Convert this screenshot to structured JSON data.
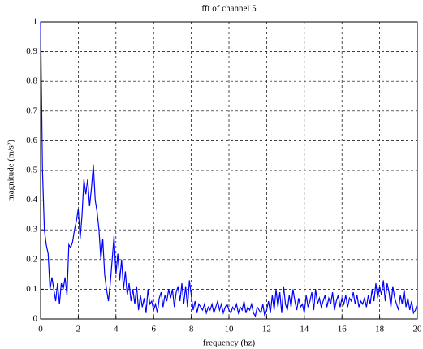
{
  "chart_data": {
    "type": "line",
    "title": "fft of channel 5",
    "xlabel": "frequency (hz)",
    "ylabel": "magnitude (m/s²)",
    "x": [
      0,
      0.1,
      0.2,
      0.3,
      0.4,
      0.5,
      0.6,
      0.7,
      0.8,
      0.9,
      1,
      1.1,
      1.2,
      1.3,
      1.4,
      1.5,
      1.6,
      1.7,
      1.8,
      1.9,
      2,
      2.1,
      2.2,
      2.3,
      2.4,
      2.5,
      2.6,
      2.7,
      2.8,
      2.9,
      3,
      3.1,
      3.2,
      3.3,
      3.4,
      3.5,
      3.6,
      3.7,
      3.8,
      3.9,
      4,
      4.1,
      4.2,
      4.3,
      4.4,
      4.5,
      4.6,
      4.7,
      4.8,
      4.9,
      5,
      5.1,
      5.2,
      5.3,
      5.4,
      5.5,
      5.6,
      5.7,
      5.8,
      5.9,
      6,
      6.1,
      6.2,
      6.3,
      6.4,
      6.5,
      6.6,
      6.7,
      6.8,
      6.9,
      7,
      7.1,
      7.2,
      7.3,
      7.4,
      7.5,
      7.6,
      7.7,
      7.8,
      7.9,
      8,
      8.1,
      8.2,
      8.3,
      8.4,
      8.5,
      8.6,
      8.7,
      8.8,
      8.9,
      9,
      9.1,
      9.2,
      9.3,
      9.4,
      9.5,
      9.6,
      9.7,
      9.8,
      9.9,
      10,
      10.1,
      10.2,
      10.3,
      10.4,
      10.5,
      10.6,
      10.7,
      10.8,
      10.9,
      11,
      11.1,
      11.2,
      11.3,
      11.4,
      11.5,
      11.6,
      11.7,
      11.8,
      11.9,
      12,
      12.1,
      12.2,
      12.3,
      12.4,
      12.5,
      12.6,
      12.7,
      12.8,
      12.9,
      13,
      13.1,
      13.2,
      13.3,
      13.4,
      13.5,
      13.6,
      13.7,
      13.8,
      13.9,
      14,
      14.1,
      14.2,
      14.3,
      14.4,
      14.5,
      14.6,
      14.7,
      14.8,
      14.9,
      15,
      15.1,
      15.2,
      15.3,
      15.4,
      15.5,
      15.6,
      15.7,
      15.8,
      15.9,
      16,
      16.1,
      16.2,
      16.3,
      16.4,
      16.5,
      16.6,
      16.7,
      16.8,
      16.9,
      17,
      17.1,
      17.2,
      17.3,
      17.4,
      17.5,
      17.6,
      17.7,
      17.8,
      17.9,
      18,
      18.1,
      18.2,
      18.3,
      18.4,
      18.5,
      18.6,
      18.7,
      18.8,
      18.9,
      19,
      19.1,
      19.2,
      19.3,
      19.4,
      19.5,
      19.6,
      19.7,
      19.8,
      19.9,
      20
    ],
    "series": [
      {
        "color": "#0000ff",
        "values": [
          1.0,
          0.5,
          0.3,
          0.25,
          0.22,
          0.1,
          0.14,
          0.1,
          0.06,
          0.12,
          0.05,
          0.12,
          0.1,
          0.14,
          0.08,
          0.25,
          0.24,
          0.26,
          0.3,
          0.33,
          0.37,
          0.27,
          0.35,
          0.47,
          0.42,
          0.47,
          0.38,
          0.44,
          0.52,
          0.4,
          0.36,
          0.3,
          0.2,
          0.27,
          0.15,
          0.1,
          0.06,
          0.12,
          0.2,
          0.28,
          0.15,
          0.22,
          0.13,
          0.2,
          0.1,
          0.16,
          0.08,
          0.12,
          0.06,
          0.1,
          0.05,
          0.11,
          0.03,
          0.08,
          0.04,
          0.07,
          0.02,
          0.1,
          0.05,
          0.06,
          0.03,
          0.05,
          0.02,
          0.07,
          0.09,
          0.04,
          0.08,
          0.06,
          0.1,
          0.07,
          0.1,
          0.04,
          0.09,
          0.11,
          0.06,
          0.12,
          0.05,
          0.11,
          0.04,
          0.13,
          0.08,
          0.03,
          0.06,
          0.02,
          0.05,
          0.04,
          0.03,
          0.05,
          0.02,
          0.04,
          0.03,
          0.05,
          0.02,
          0.04,
          0.06,
          0.03,
          0.05,
          0.02,
          0.04,
          0.05,
          0.03,
          0.02,
          0.04,
          0.03,
          0.05,
          0.02,
          0.04,
          0.03,
          0.06,
          0.02,
          0.04,
          0.03,
          0.05,
          0.02,
          0.01,
          0.04,
          0.03,
          0.02,
          0.05,
          0.01,
          0.03,
          0.06,
          0.02,
          0.08,
          0.03,
          0.1,
          0.04,
          0.09,
          0.02,
          0.11,
          0.05,
          0.03,
          0.08,
          0.04,
          0.1,
          0.06,
          0.03,
          0.07,
          0.04,
          0.05,
          0.02,
          0.08,
          0.04,
          0.06,
          0.09,
          0.03,
          0.1,
          0.05,
          0.07,
          0.04,
          0.06,
          0.08,
          0.04,
          0.07,
          0.05,
          0.09,
          0.03,
          0.06,
          0.08,
          0.04,
          0.07,
          0.05,
          0.08,
          0.04,
          0.07,
          0.06,
          0.09,
          0.05,
          0.08,
          0.04,
          0.06,
          0.05,
          0.07,
          0.04,
          0.08,
          0.05,
          0.1,
          0.06,
          0.12,
          0.07,
          0.11,
          0.08,
          0.13,
          0.06,
          0.12,
          0.09,
          0.04,
          0.11,
          0.07,
          0.05,
          0.03,
          0.08,
          0.05,
          0.1,
          0.04,
          0.07,
          0.03,
          0.06,
          0.02,
          0.03,
          0.05
        ]
      }
    ],
    "xlim": [
      0,
      20
    ],
    "xticks": [
      0,
      2,
      4,
      6,
      8,
      10,
      12,
      14,
      16,
      18,
      20
    ],
    "ylim": [
      0,
      1
    ],
    "yticks": [
      0,
      0.1,
      0.2,
      0.3,
      0.4,
      0.5,
      0.6,
      0.7,
      0.8,
      0.9,
      1
    ],
    "grid": true
  }
}
